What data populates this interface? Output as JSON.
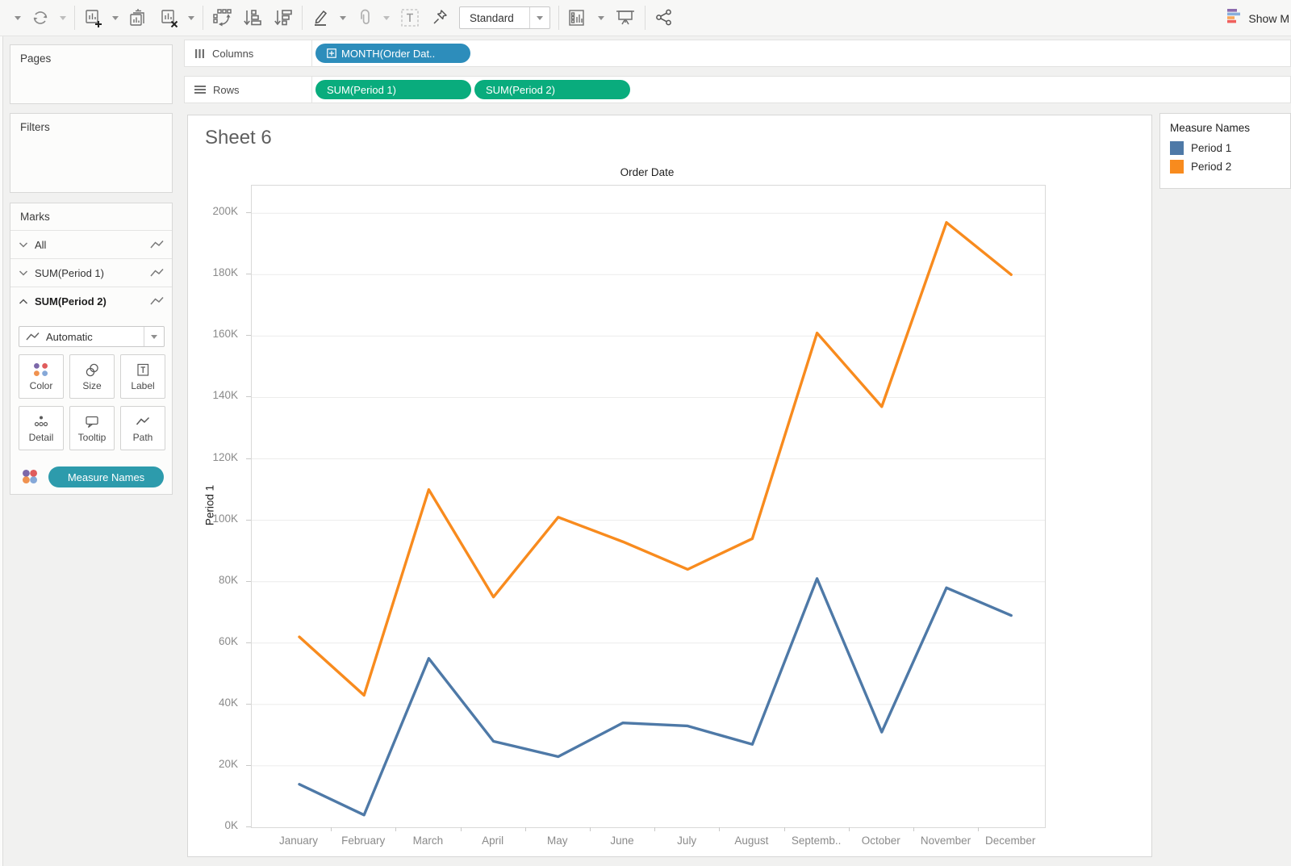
{
  "toolbar": {
    "standard_label": "Standard",
    "show_me_label": "Show M",
    "show_me_bar_colors": [
      "#8C6BAE",
      "#88AEDC",
      "#F9A65A",
      "#F0605C"
    ],
    "icon_names": [
      "undo-caret",
      "redo-icon",
      "redo-caret",
      "new-worksheet-icon",
      "new-worksheet-caret",
      "duplicate-sheet-icon",
      "clear-sheet-icon",
      "clear-sheet-caret",
      "swap-rows-columns-icon",
      "sort-ascending-icon",
      "sort-descending-icon",
      "highlight-icon",
      "highlight-caret",
      "attachment-icon",
      "attachment-caret",
      "text-annotation-icon",
      "pin-icon",
      "fit-selector",
      "show-hide-cards-icon",
      "presentation-mode-icon",
      "share-icon",
      "show-me-icon"
    ]
  },
  "shelves": {
    "columns_label": "Columns",
    "rows_label": "Rows",
    "columns_pills": [
      {
        "label": "MONTH(Order Dat..",
        "color": "#2D8DBB"
      }
    ],
    "rows_pills": [
      {
        "label": "SUM(Period 1)",
        "color": "#09AC7D"
      },
      {
        "label": "SUM(Period 2)",
        "color": "#09AC7D"
      }
    ]
  },
  "cards": {
    "pages_label": "Pages",
    "filters_label": "Filters"
  },
  "marks": {
    "title": "Marks",
    "rows": [
      {
        "label": "All"
      },
      {
        "label": "SUM(Period 1)"
      },
      {
        "label": "SUM(Period 2)"
      }
    ],
    "mark_type_label": "Automatic",
    "buttons": [
      {
        "label": "Color"
      },
      {
        "label": "Size"
      },
      {
        "label": "Label"
      },
      {
        "label": "Detail"
      },
      {
        "label": "Tooltip"
      },
      {
        "label": "Path"
      }
    ],
    "legend_pill_label": "Measure Names",
    "legend_pill_color": "#2D9BAC",
    "palette_dots": [
      "#7C68A9",
      "#E05C5C",
      "#F0924F",
      "#85A8D8"
    ]
  },
  "sheet": {
    "title": "Sheet 6"
  },
  "legend": {
    "title": "Measure Names",
    "items": [
      {
        "label": "Period 1",
        "color": "#4E79A7"
      },
      {
        "label": "Period 2",
        "color": "#F88B1E"
      }
    ]
  },
  "chart_data": {
    "type": "line",
    "title": "Order Date",
    "xlabel": "",
    "ylabel": "Period 1",
    "categories": [
      "January",
      "February",
      "March",
      "April",
      "May",
      "June",
      "July",
      "August",
      "Septemb..",
      "October",
      "November",
      "December"
    ],
    "series": [
      {
        "name": "Period 1",
        "color": "#4E79A7",
        "values": [
          14000,
          4000,
          55000,
          28000,
          23000,
          34000,
          33000,
          27000,
          81000,
          31000,
          78000,
          69000
        ]
      },
      {
        "name": "Period 2",
        "color": "#F88B1E",
        "values": [
          62000,
          43000,
          110000,
          75000,
          101000,
          93000,
          84000,
          94000,
          161000,
          137000,
          197000,
          180000
        ]
      }
    ],
    "ylim": [
      0,
      209000
    ],
    "yticks": [
      0,
      20000,
      40000,
      60000,
      80000,
      100000,
      120000,
      140000,
      160000,
      180000,
      200000
    ],
    "ytick_labels": [
      "0K",
      "20K",
      "40K",
      "60K",
      "80K",
      "100K",
      "120K",
      "140K",
      "160K",
      "180K",
      "200K"
    ],
    "grid": true,
    "legend_position": "right"
  }
}
